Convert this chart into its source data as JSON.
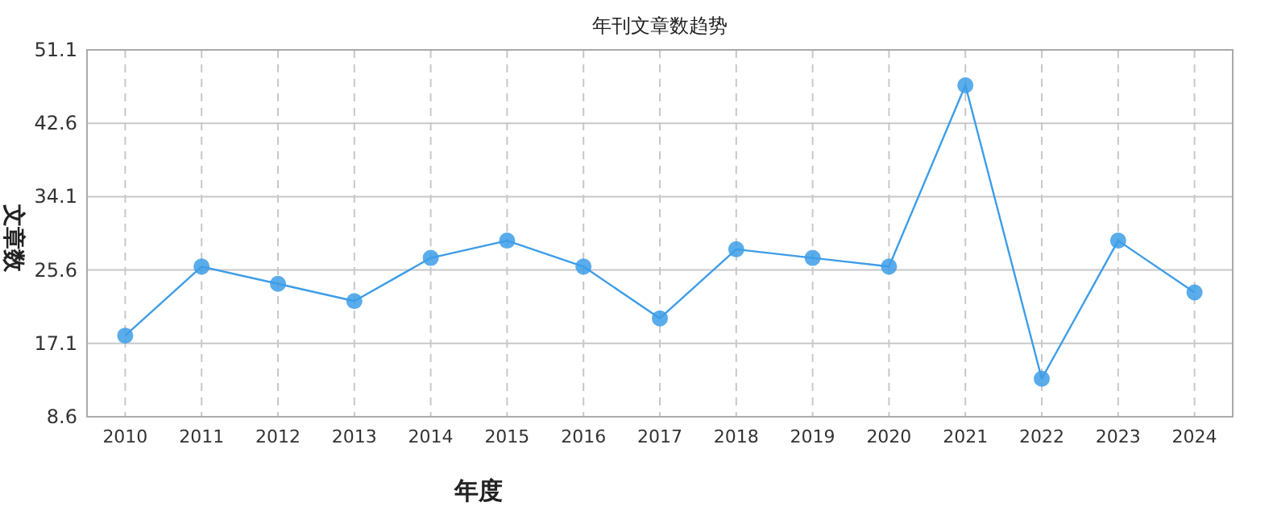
{
  "chart_data": {
    "type": "line",
    "title": "年刊文章数趋势",
    "xlabel": "年度",
    "ylabel": "文章数",
    "categories": [
      "2010",
      "2011",
      "2012",
      "2013",
      "2014",
      "2015",
      "2016",
      "2017",
      "2018",
      "2019",
      "2020",
      "2021",
      "2022",
      "2023",
      "2024"
    ],
    "series": [
      {
        "color": "#3d9de8",
        "values": [
          18,
          26,
          24,
          22,
          27,
          29,
          26,
          20,
          28,
          27,
          26,
          47,
          13,
          29,
          23
        ]
      }
    ],
    "ylim": [
      8.6,
      51.1
    ],
    "yticks": [
      8.6,
      17.1,
      25.6,
      34.1,
      42.6,
      51.1
    ],
    "grid": true,
    "marker": "circle",
    "line_style": "solid"
  }
}
